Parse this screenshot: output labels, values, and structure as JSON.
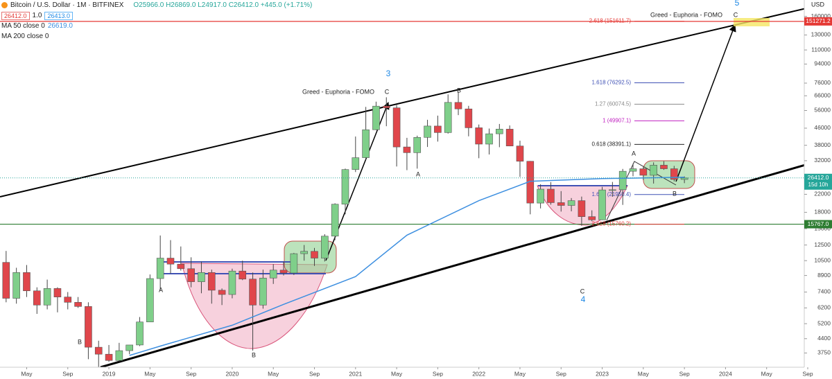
{
  "header": {
    "symbol": "Bitcoin / U.S. Dollar · 1M · BITFINEX",
    "ohlc": "O25966.0 H26869.0 L24917.0 C26412.0 +445.0 (+1.71%)",
    "bid": "26412.0",
    "spread": "1.0",
    "ask": "26413.0",
    "ma200": "MA 200 close 0",
    "currency": "USD"
  },
  "chart_data": {
    "type": "candlestick",
    "log_scale": true,
    "grid": false,
    "up_color": "#7fcf8a",
    "down_color": "#e0464b",
    "x": [
      "2018-03",
      "2018-04",
      "2018-05",
      "2018-06",
      "2018-07",
      "2018-08",
      "2018-09",
      "2018-10",
      "2018-11",
      "2018-12",
      "2019-01",
      "2019-02",
      "2019-03",
      "2019-04",
      "2019-05",
      "2019-06",
      "2019-07",
      "2019-08",
      "2019-09",
      "2019-10",
      "2019-11",
      "2019-12",
      "2020-01",
      "2020-02",
      "2020-03",
      "2020-04",
      "2020-05",
      "2020-06",
      "2020-07",
      "2020-08",
      "2020-09",
      "2020-10",
      "2020-11",
      "2020-12",
      "2021-01",
      "2021-02",
      "2021-03",
      "2021-04",
      "2021-05",
      "2021-06",
      "2021-07",
      "2021-08",
      "2021-09",
      "2021-10",
      "2021-11",
      "2021-12",
      "2022-01",
      "2022-02",
      "2022-03",
      "2022-04",
      "2022-05",
      "2022-06",
      "2022-07",
      "2022-08",
      "2022-09",
      "2022-10",
      "2022-11",
      "2022-12",
      "2023-01",
      "2023-02",
      "2023-03",
      "2023-04",
      "2023-05",
      "2023-06",
      "2023-07",
      "2023-08",
      "2023-09"
    ],
    "open": [
      10300,
      6900,
      9200,
      7500,
      6400,
      7700,
      7000,
      6600,
      6300,
      4000,
      3700,
      3450,
      3850,
      4100,
      5300,
      8600,
      10800,
      10100,
      9600,
      8300,
      9200,
      7550,
      7200,
      9350,
      8550,
      6400,
      8650,
      9450,
      9150,
      11350,
      11650,
      10800,
      13800,
      19700,
      29000,
      33100,
      45200,
      58800,
      57700,
      37300,
      35000,
      41500,
      47100,
      43800,
      61300,
      57000,
      46200,
      38500,
      43200,
      45500,
      37700,
      31800,
      19950,
      23300,
      20050,
      19430,
      20500,
      17150,
      16550,
      23100,
      23150,
      28450,
      29250,
      27200,
      30450,
      29250,
      25966
    ],
    "high": [
      11700,
      9700,
      10000,
      7800,
      8500,
      7800,
      7400,
      7000,
      6600,
      4300,
      4100,
      4200,
      4100,
      5600,
      9000,
      13900,
      13200,
      12300,
      10900,
      10400,
      9500,
      7700,
      9600,
      10500,
      9200,
      9500,
      10100,
      10400,
      11450,
      12500,
      12100,
      14100,
      19900,
      29300,
      41900,
      58300,
      61800,
      64900,
      59500,
      41300,
      42300,
      50500,
      52900,
      67000,
      69000,
      59000,
      47900,
      45800,
      48200,
      47400,
      40000,
      31900,
      24600,
      25200,
      22800,
      21100,
      21450,
      18400,
      23900,
      25250,
      29200,
      31000,
      29850,
      31400,
      31800,
      30200,
      26869
    ],
    "low": [
      6600,
      6500,
      7000,
      5800,
      6100,
      5900,
      6100,
      6200,
      3500,
      3200,
      3400,
      3400,
      3700,
      4050,
      5300,
      7500,
      9100,
      9400,
      7800,
      7300,
      6500,
      6400,
      6900,
      8450,
      3850,
      6150,
      8100,
      8900,
      8950,
      10500,
      9900,
      10400,
      13200,
      17600,
      28200,
      32400,
      45000,
      47000,
      30000,
      28800,
      29300,
      37300,
      39600,
      43300,
      53200,
      42000,
      32900,
      34300,
      37200,
      37600,
      26700,
      17600,
      18800,
      19600,
      18150,
      18200,
      15500,
      16300,
      16500,
      21400,
      19550,
      26900,
      25800,
      24800,
      28900,
      25400,
      24917
    ],
    "close": [
      6900,
      9200,
      7500,
      6400,
      7700,
      7000,
      6600,
      6300,
      4000,
      3700,
      3450,
      3850,
      4100,
      5300,
      8600,
      10800,
      10100,
      9600,
      8300,
      9200,
      7550,
      7200,
      9350,
      8550,
      6400,
      8650,
      9450,
      9150,
      11350,
      11650,
      10800,
      13800,
      19700,
      29000,
      33100,
      45200,
      58800,
      57700,
      37300,
      35000,
      41500,
      47100,
      43800,
      61300,
      57000,
      46200,
      38500,
      43200,
      45500,
      37700,
      31800,
      19950,
      23300,
      20050,
      19430,
      20500,
      17150,
      16550,
      23100,
      23150,
      28450,
      29250,
      27200,
      30450,
      29250,
      25966,
      26412
    ],
    "ma": {
      "name": "MA 50 close 0",
      "color": "#3d8fe0",
      "value_label": "26619.0",
      "x": [
        "2019-03",
        "2019-06",
        "2020-01",
        "2020-06",
        "2021-01",
        "2021-06",
        "2022-01",
        "2022-06",
        "2023-01",
        "2023-09"
      ],
      "values": [
        3650,
        4050,
        5110,
        6450,
        8790,
        13950,
        20500,
        25450,
        26200,
        26619
      ]
    },
    "xlim": [
      "2018-02",
      "2024-09"
    ],
    "xticks": [
      {
        "value": "2018-05",
        "label": "May"
      },
      {
        "value": "2018-09",
        "label": "Sep"
      },
      {
        "value": "2019-01",
        "label": "2019"
      },
      {
        "value": "2019-05",
        "label": "May"
      },
      {
        "value": "2019-09",
        "label": "Sep"
      },
      {
        "value": "2020-01",
        "label": "2020"
      },
      {
        "value": "2020-05",
        "label": "May"
      },
      {
        "value": "2020-09",
        "label": "Sep"
      },
      {
        "value": "2021-01",
        "label": "2021"
      },
      {
        "value": "2021-05",
        "label": "May"
      },
      {
        "value": "2021-09",
        "label": "Sep"
      },
      {
        "value": "2022-01",
        "label": "2022"
      },
      {
        "value": "2022-05",
        "label": "May"
      },
      {
        "value": "2022-09",
        "label": "Sep"
      },
      {
        "value": "2023-01",
        "label": "2023"
      },
      {
        "value": "2023-05",
        "label": "May"
      },
      {
        "value": "2023-09",
        "label": "Sep"
      },
      {
        "value": "2024-01",
        "label": "2024"
      },
      {
        "value": "2024-05",
        "label": "May"
      },
      {
        "value": "2024-09",
        "label": "Sep"
      }
    ],
    "ylim": [
      3200,
      192000
    ],
    "yticks": [
      160000,
      130000,
      110000,
      94000,
      76000,
      66000,
      56000,
      46000,
      38000,
      32000,
      26000,
      22000,
      18000,
      15000,
      12500,
      10500,
      8900,
      7400,
      6200,
      5200,
      4400,
      3750
    ],
    "hlines": [
      {
        "value": 151271.2,
        "label": "151271.2",
        "color": "#e53935"
      },
      {
        "value": 15767,
        "label": "15767.0",
        "color": "#2e7d32"
      }
    ],
    "last": {
      "value": 26412,
      "label": "26412.0",
      "countdown": "15d 10h",
      "color": "#26a69a"
    },
    "fibs": [
      {
        "value": 151611.7,
        "label": "2.618 (151611.7)",
        "color": "#e53935"
      },
      {
        "value": 76292.5,
        "label": "1.618 (76292.5)",
        "color": "#3f51b5"
      },
      {
        "value": 60074.5,
        "label": "1.27 (60074.5)",
        "color": "#888888"
      },
      {
        "value": 49907.1,
        "label": "1 (49907.1)",
        "color": "#c020c0"
      },
      {
        "value": 38391.1,
        "label": "0.618 (38391.1)",
        "color": "#222222"
      },
      {
        "value": 21950.4,
        "label": "1.618 (21950.4)",
        "color": "#3f51b5"
      },
      {
        "value": 15760.2,
        "label": "2.618 (15760.2)",
        "color": "#e53935"
      }
    ],
    "annotations": [
      "Greed - Euphoria - FOMO",
      "Greed - Euphoria - FOMO",
      "3",
      "5",
      "4",
      "C",
      "B",
      "A",
      "A",
      "B",
      "B",
      "C",
      "A",
      "C",
      "B"
    ]
  }
}
